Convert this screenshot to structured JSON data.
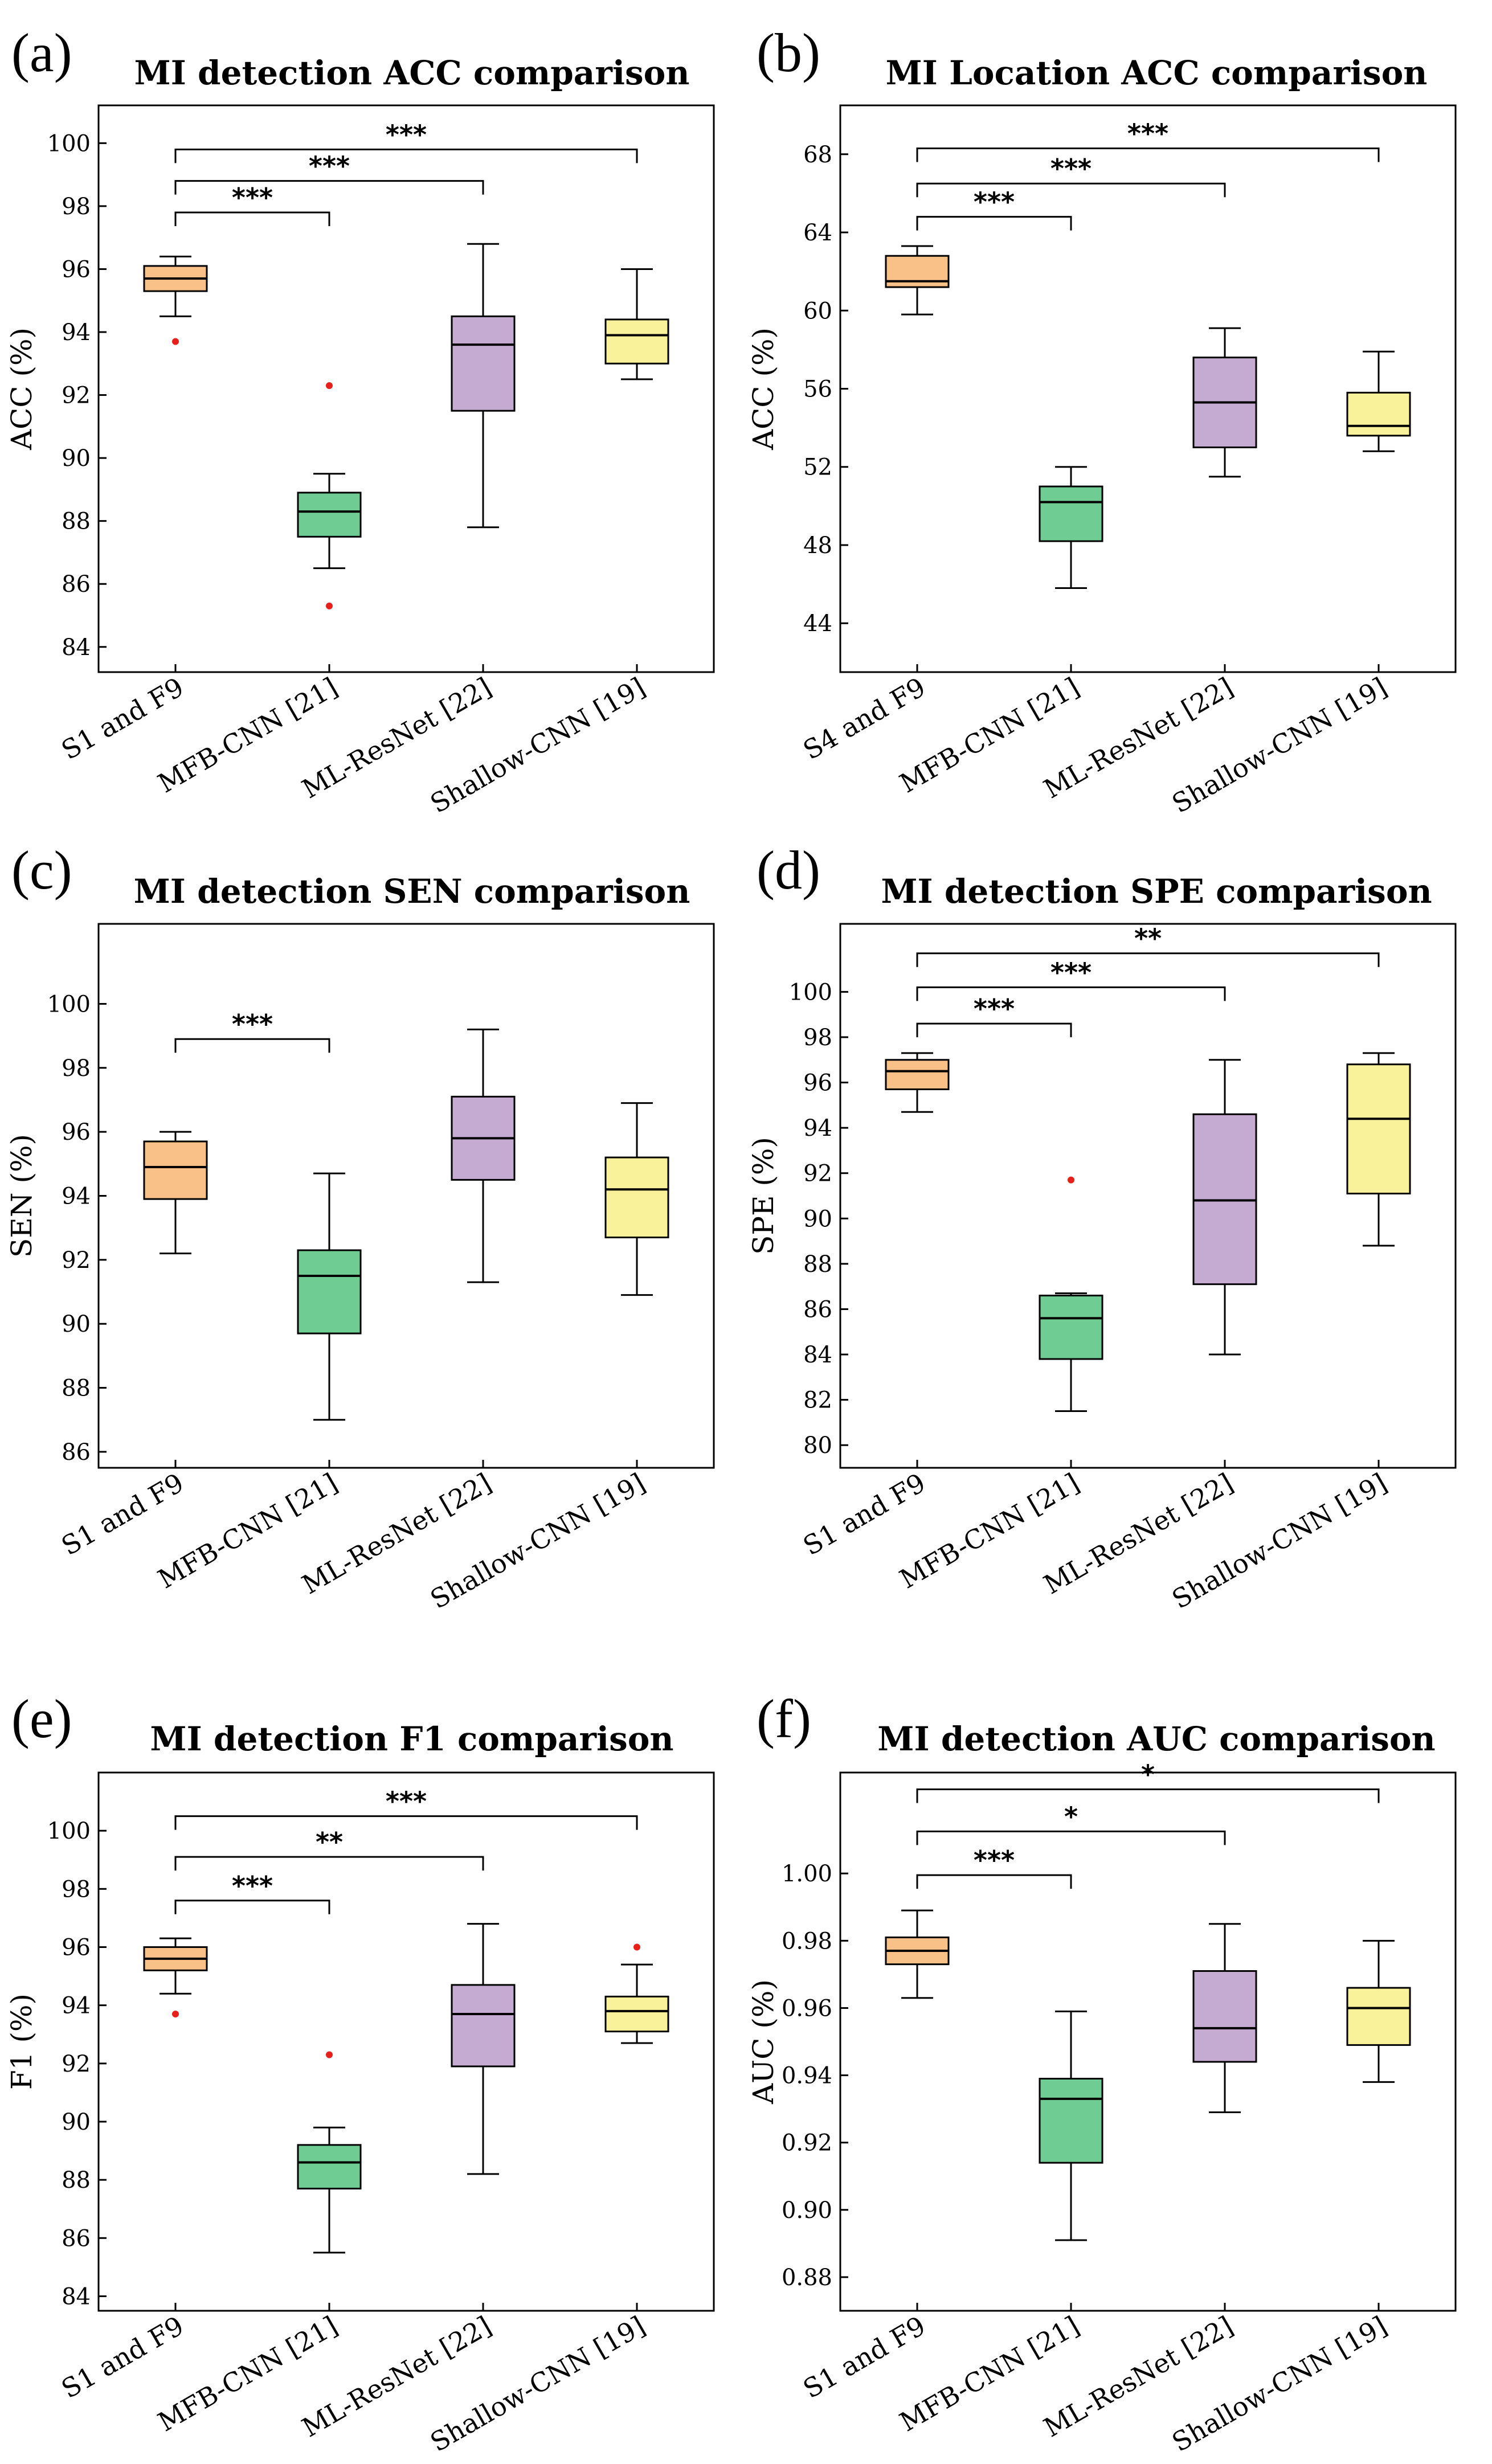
{
  "colors": {
    "orange": "#f9c088",
    "green": "#6fcd93",
    "purple": "#c5abd2",
    "yellow": "#f9f29a",
    "outlier": "#e8201c"
  },
  "chart_data": [
    {
      "panel": "(a)",
      "type": "box",
      "title": "MI detection ACC comparison",
      "ylabel": "ACC (%)",
      "ylim": [
        83.2,
        101.2
      ],
      "yticks": [
        84,
        86,
        88,
        90,
        92,
        94,
        96,
        98,
        100
      ],
      "categories": [
        "S1 and F9",
        "MFB-CNN [21]",
        "ML-ResNet [22]",
        "Shallow-CNN [19]"
      ],
      "boxes": [
        {
          "min": 94.5,
          "q1": 95.3,
          "median": 95.7,
          "q3": 96.1,
          "max": 96.4,
          "outliers": [
            93.7
          ],
          "color": "orange"
        },
        {
          "min": 86.5,
          "q1": 87.5,
          "median": 88.3,
          "q3": 88.9,
          "max": 89.5,
          "outliers": [
            92.3,
            85.3
          ],
          "color": "green"
        },
        {
          "min": 87.8,
          "q1": 91.5,
          "median": 93.6,
          "q3": 94.5,
          "max": 96.8,
          "outliers": [],
          "color": "purple"
        },
        {
          "min": 92.5,
          "q1": 93.0,
          "median": 93.9,
          "q3": 94.4,
          "max": 96.0,
          "outliers": [],
          "color": "yellow"
        }
      ],
      "significance": [
        {
          "from": 0,
          "to": 1,
          "y": 97.8,
          "label": "***"
        },
        {
          "from": 0,
          "to": 2,
          "y": 98.8,
          "label": "***"
        },
        {
          "from": 0,
          "to": 3,
          "y": 99.8,
          "label": "***"
        }
      ]
    },
    {
      "panel": "(b)",
      "type": "box",
      "title": "MI Location ACC comparison",
      "ylabel": "ACC (%)",
      "ylim": [
        41.5,
        70.5
      ],
      "yticks": [
        44,
        48,
        52,
        56,
        60,
        64,
        68
      ],
      "categories": [
        "S4 and F9",
        "MFB-CNN [21]",
        "ML-ResNet [22]",
        "Shallow-CNN [19]"
      ],
      "boxes": [
        {
          "min": 59.8,
          "q1": 61.2,
          "median": 61.5,
          "q3": 62.8,
          "max": 63.3,
          "outliers": [],
          "color": "orange"
        },
        {
          "min": 45.8,
          "q1": 48.2,
          "median": 50.2,
          "q3": 51.0,
          "max": 52.0,
          "outliers": [],
          "color": "green"
        },
        {
          "min": 51.5,
          "q1": 53.0,
          "median": 55.3,
          "q3": 57.6,
          "max": 59.1,
          "outliers": [],
          "color": "purple"
        },
        {
          "min": 52.8,
          "q1": 53.6,
          "median": 54.1,
          "q3": 55.8,
          "max": 57.9,
          "outliers": [],
          "color": "yellow"
        }
      ],
      "significance": [
        {
          "from": 0,
          "to": 1,
          "y": 64.8,
          "label": "***"
        },
        {
          "from": 0,
          "to": 2,
          "y": 66.5,
          "label": "***"
        },
        {
          "from": 0,
          "to": 3,
          "y": 68.3,
          "label": "***"
        }
      ]
    },
    {
      "panel": "(c)",
      "type": "box",
      "title": "MI detection SEN comparison",
      "ylabel": "SEN (%)",
      "ylim": [
        85.5,
        102.5
      ],
      "yticks": [
        86,
        88,
        90,
        92,
        94,
        96,
        98,
        100
      ],
      "categories": [
        "S1 and F9",
        "MFB-CNN [21]",
        "ML-ResNet [22]",
        "Shallow-CNN [19]"
      ],
      "boxes": [
        {
          "min": 92.2,
          "q1": 93.9,
          "median": 94.9,
          "q3": 95.7,
          "max": 96.0,
          "outliers": [],
          "color": "orange"
        },
        {
          "min": 87.0,
          "q1": 89.7,
          "median": 91.5,
          "q3": 92.3,
          "max": 94.7,
          "outliers": [],
          "color": "green"
        },
        {
          "min": 91.3,
          "q1": 94.5,
          "median": 95.8,
          "q3": 97.1,
          "max": 99.2,
          "outliers": [],
          "color": "purple"
        },
        {
          "min": 90.9,
          "q1": 92.7,
          "median": 94.2,
          "q3": 95.2,
          "max": 96.9,
          "outliers": [],
          "color": "yellow"
        }
      ],
      "significance": [
        {
          "from": 0,
          "to": 1,
          "y": 98.9,
          "label": "***"
        }
      ]
    },
    {
      "panel": "(d)",
      "type": "box",
      "title": "MI detection SPE comparison",
      "ylabel": "SPE (%)",
      "ylim": [
        79.0,
        103.0
      ],
      "yticks": [
        80,
        82,
        84,
        86,
        88,
        90,
        92,
        94,
        96,
        98,
        100
      ],
      "categories": [
        "S1 and F9",
        "MFB-CNN [21]",
        "ML-ResNet [22]",
        "Shallow-CNN [19]"
      ],
      "boxes": [
        {
          "min": 94.7,
          "q1": 95.7,
          "median": 96.5,
          "q3": 97.0,
          "max": 97.3,
          "outliers": [],
          "color": "orange"
        },
        {
          "min": 81.5,
          "q1": 83.8,
          "median": 85.6,
          "q3": 86.6,
          "max": 86.7,
          "outliers": [
            91.7
          ],
          "color": "green"
        },
        {
          "min": 84.0,
          "q1": 87.1,
          "median": 90.8,
          "q3": 94.6,
          "max": 97.0,
          "outliers": [],
          "color": "purple"
        },
        {
          "min": 88.8,
          "q1": 91.1,
          "median": 94.4,
          "q3": 96.8,
          "max": 97.3,
          "outliers": [],
          "color": "yellow"
        }
      ],
      "significance": [
        {
          "from": 0,
          "to": 1,
          "y": 98.6,
          "label": "***"
        },
        {
          "from": 0,
          "to": 2,
          "y": 100.2,
          "label": "***"
        },
        {
          "from": 0,
          "to": 3,
          "y": 101.7,
          "label": "**"
        }
      ]
    },
    {
      "panel": "(e)",
      "type": "box",
      "title": "MI detection F1 comparison",
      "ylabel": "F1 (%)",
      "ylim": [
        83.5,
        102.0
      ],
      "yticks": [
        84,
        86,
        88,
        90,
        92,
        94,
        96,
        98,
        100
      ],
      "categories": [
        "S1 and F9",
        "MFB-CNN [21]",
        "ML-ResNet [22]",
        "Shallow-CNN [19]"
      ],
      "boxes": [
        {
          "min": 94.4,
          "q1": 95.2,
          "median": 95.6,
          "q3": 96.0,
          "max": 96.3,
          "outliers": [
            93.7
          ],
          "color": "orange"
        },
        {
          "min": 85.5,
          "q1": 87.7,
          "median": 88.6,
          "q3": 89.2,
          "max": 89.8,
          "outliers": [
            92.3
          ],
          "color": "green"
        },
        {
          "min": 88.2,
          "q1": 91.9,
          "median": 93.7,
          "q3": 94.7,
          "max": 96.8,
          "outliers": [],
          "color": "purple"
        },
        {
          "min": 92.7,
          "q1": 93.1,
          "median": 93.8,
          "q3": 94.3,
          "max": 95.4,
          "outliers": [
            96.0
          ],
          "color": "yellow"
        }
      ],
      "significance": [
        {
          "from": 0,
          "to": 1,
          "y": 97.6,
          "label": "***"
        },
        {
          "from": 0,
          "to": 2,
          "y": 99.1,
          "label": "**"
        },
        {
          "from": 0,
          "to": 3,
          "y": 100.5,
          "label": "***"
        }
      ]
    },
    {
      "panel": "(f)",
      "type": "box",
      "title": "MI detection AUC comparison",
      "ylabel": "AUC (%)",
      "ylim": [
        0.87,
        1.03
      ],
      "yticks": [
        0.88,
        0.9,
        0.92,
        0.94,
        0.96,
        0.98,
        1.0
      ],
      "yformat": 2,
      "categories": [
        "S1 and F9",
        "MFB-CNN [21]",
        "ML-ResNet [22]",
        "Shallow-CNN [19]"
      ],
      "boxes": [
        {
          "min": 0.963,
          "q1": 0.973,
          "median": 0.977,
          "q3": 0.981,
          "max": 0.989,
          "outliers": [],
          "color": "orange"
        },
        {
          "min": 0.891,
          "q1": 0.914,
          "median": 0.933,
          "q3": 0.939,
          "max": 0.959,
          "outliers": [],
          "color": "green"
        },
        {
          "min": 0.929,
          "q1": 0.944,
          "median": 0.954,
          "q3": 0.971,
          "max": 0.985,
          "outliers": [],
          "color": "purple"
        },
        {
          "min": 0.938,
          "q1": 0.949,
          "median": 0.96,
          "q3": 0.966,
          "max": 0.98,
          "outliers": [],
          "color": "yellow"
        }
      ],
      "significance": [
        {
          "from": 0,
          "to": 1,
          "y": 0.9995,
          "label": "***"
        },
        {
          "from": 0,
          "to": 2,
          "y": 1.0125,
          "label": "*"
        },
        {
          "from": 0,
          "to": 3,
          "y": 1.025,
          "label": "*"
        }
      ]
    }
  ]
}
